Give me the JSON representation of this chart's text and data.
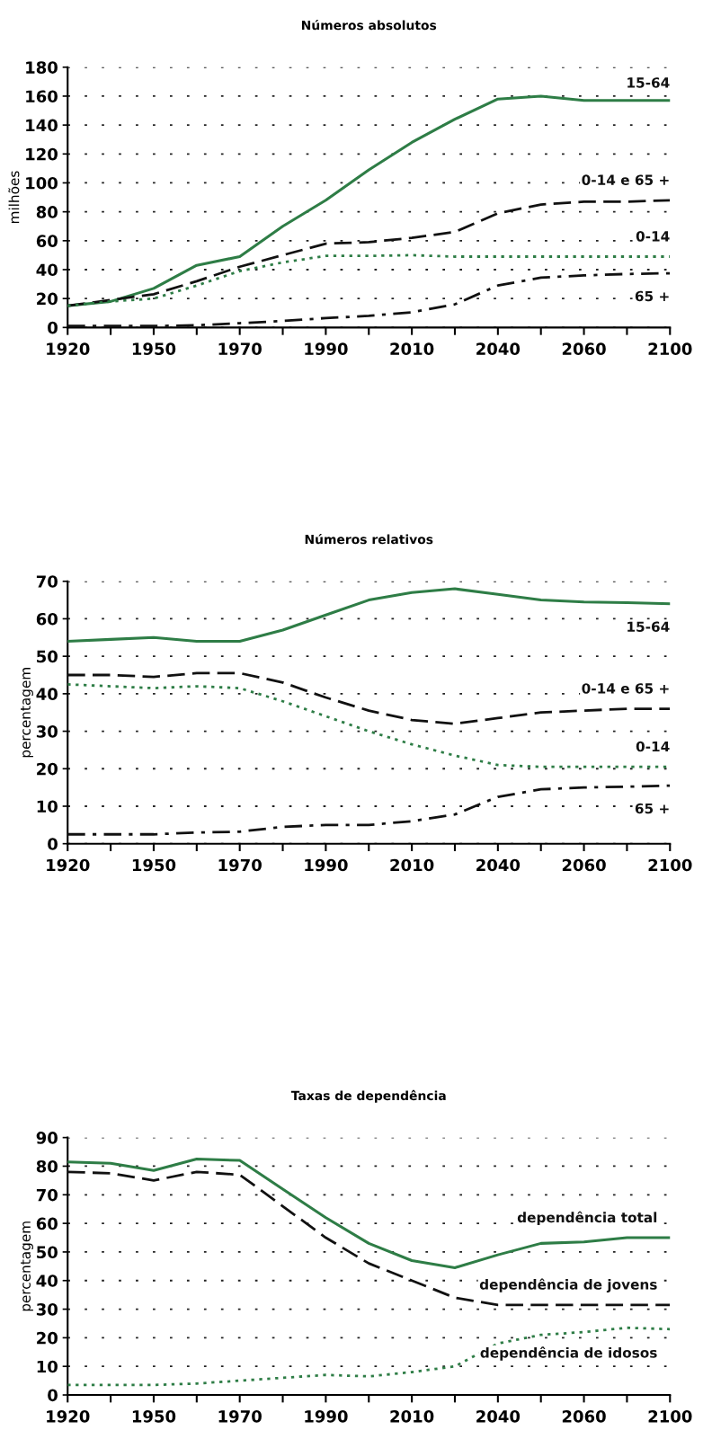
{
  "chart_data": [
    {
      "type": "line",
      "title": "Números absolutos",
      "ylabel": "milhões",
      "categories": [
        "1920",
        null,
        "1950",
        null,
        "1970",
        null,
        "1990",
        null,
        "2010",
        null,
        "2040",
        null,
        "2060",
        null,
        "2100"
      ],
      "ylim": [
        0,
        180
      ],
      "yticks": [
        0,
        20,
        40,
        60,
        80,
        100,
        120,
        140,
        160,
        180
      ],
      "grid": "y",
      "legend": false,
      "series": [
        {
          "name": "15-64",
          "color": "#2e7d46",
          "line_style": "solid",
          "values": [
            15,
            18,
            27,
            43,
            49,
            70,
            88,
            109,
            128,
            144,
            158,
            160,
            157,
            157,
            157
          ]
        },
        {
          "name": "0-14 e 65 +",
          "color": "#111111",
          "line_style": "dashed",
          "values": [
            15,
            19,
            23,
            32,
            42,
            50,
            58,
            59,
            62,
            66,
            79,
            85,
            87,
            87,
            88
          ]
        },
        {
          "name": "0-14",
          "color": "#2e7d46",
          "line_style": "dotted",
          "values": [
            15,
            18,
            20,
            29,
            39,
            45,
            49.5,
            49.5,
            50,
            49,
            49,
            49,
            49,
            49,
            49
          ]
        },
        {
          "name": "65 +",
          "color": "#111111",
          "line_style": "dashdot",
          "values": [
            1,
            1,
            1,
            1.5,
            3,
            4.5,
            6.5,
            8,
            10.5,
            16,
            29,
            34.5,
            36,
            37,
            37.5
          ]
        }
      ]
    },
    {
      "type": "line",
      "title": "Números relativos",
      "ylabel": "percentagem",
      "categories": [
        "1920",
        null,
        "1950",
        null,
        "1970",
        null,
        "1990",
        null,
        "2010",
        null,
        "2040",
        null,
        "2060",
        null,
        "2100"
      ],
      "ylim": [
        0,
        70
      ],
      "yticks": [
        0,
        10,
        20,
        30,
        40,
        50,
        60,
        70
      ],
      "grid": "y",
      "legend": false,
      "series": [
        {
          "name": "15-64",
          "color": "#2e7d46",
          "line_style": "solid",
          "values": [
            54,
            54.5,
            55,
            54,
            54,
            57,
            61,
            65,
            67,
            68,
            66.5,
            65,
            64.5,
            64.3,
            64
          ]
        },
        {
          "name": "0-14 e 65 +",
          "color": "#111111",
          "line_style": "dashed",
          "values": [
            45,
            45,
            44.5,
            45.5,
            45.5,
            43,
            39,
            35.5,
            33,
            32,
            33.5,
            35,
            35.5,
            36,
            36
          ]
        },
        {
          "name": "0-14",
          "color": "#2e7d46",
          "line_style": "dotted",
          "values": [
            42.5,
            42,
            41.5,
            42,
            41.5,
            38,
            34,
            30,
            26.5,
            23.5,
            21,
            20.5,
            20.5,
            20.5,
            20.5
          ]
        },
        {
          "name": "65 +",
          "color": "#111111",
          "line_style": "dashdot",
          "values": [
            2.5,
            2.5,
            2.5,
            3,
            3.2,
            4.5,
            5,
            5,
            6,
            7.8,
            12.5,
            14.5,
            15,
            15.2,
            15.5
          ]
        }
      ]
    },
    {
      "type": "line",
      "title": "Taxas de dependência",
      "ylabel": "percentagem",
      "categories": [
        "1920",
        null,
        "1950",
        null,
        "1970",
        null,
        "1990",
        null,
        "2010",
        null,
        "2040",
        null,
        "2060",
        null,
        "2100"
      ],
      "ylim": [
        0,
        90
      ],
      "yticks": [
        0,
        10,
        20,
        30,
        40,
        50,
        60,
        70,
        80,
        90
      ],
      "grid": "y",
      "legend": false,
      "series": [
        {
          "name": "dependência total",
          "color": "#2e7d46",
          "line_style": "solid",
          "values": [
            81.5,
            81,
            78.5,
            82.5,
            82,
            72,
            62,
            53,
            47,
            44.5,
            49,
            53,
            53.5,
            55,
            55
          ]
        },
        {
          "name": "dependência de jovens",
          "color": "#111111",
          "line_style": "dashed",
          "values": [
            78,
            77.5,
            75,
            78,
            77,
            66,
            55,
            46,
            40,
            34,
            31.5,
            31.5,
            31.5,
            31.5,
            31.5
          ]
        },
        {
          "name": "dependência de idosos",
          "color": "#2e7d46",
          "line_style": "dotted",
          "values": [
            3.5,
            3.5,
            3.5,
            4,
            5,
            6,
            7,
            6.5,
            8,
            10,
            18,
            21,
            22,
            23.5,
            23
          ]
        }
      ]
    }
  ]
}
